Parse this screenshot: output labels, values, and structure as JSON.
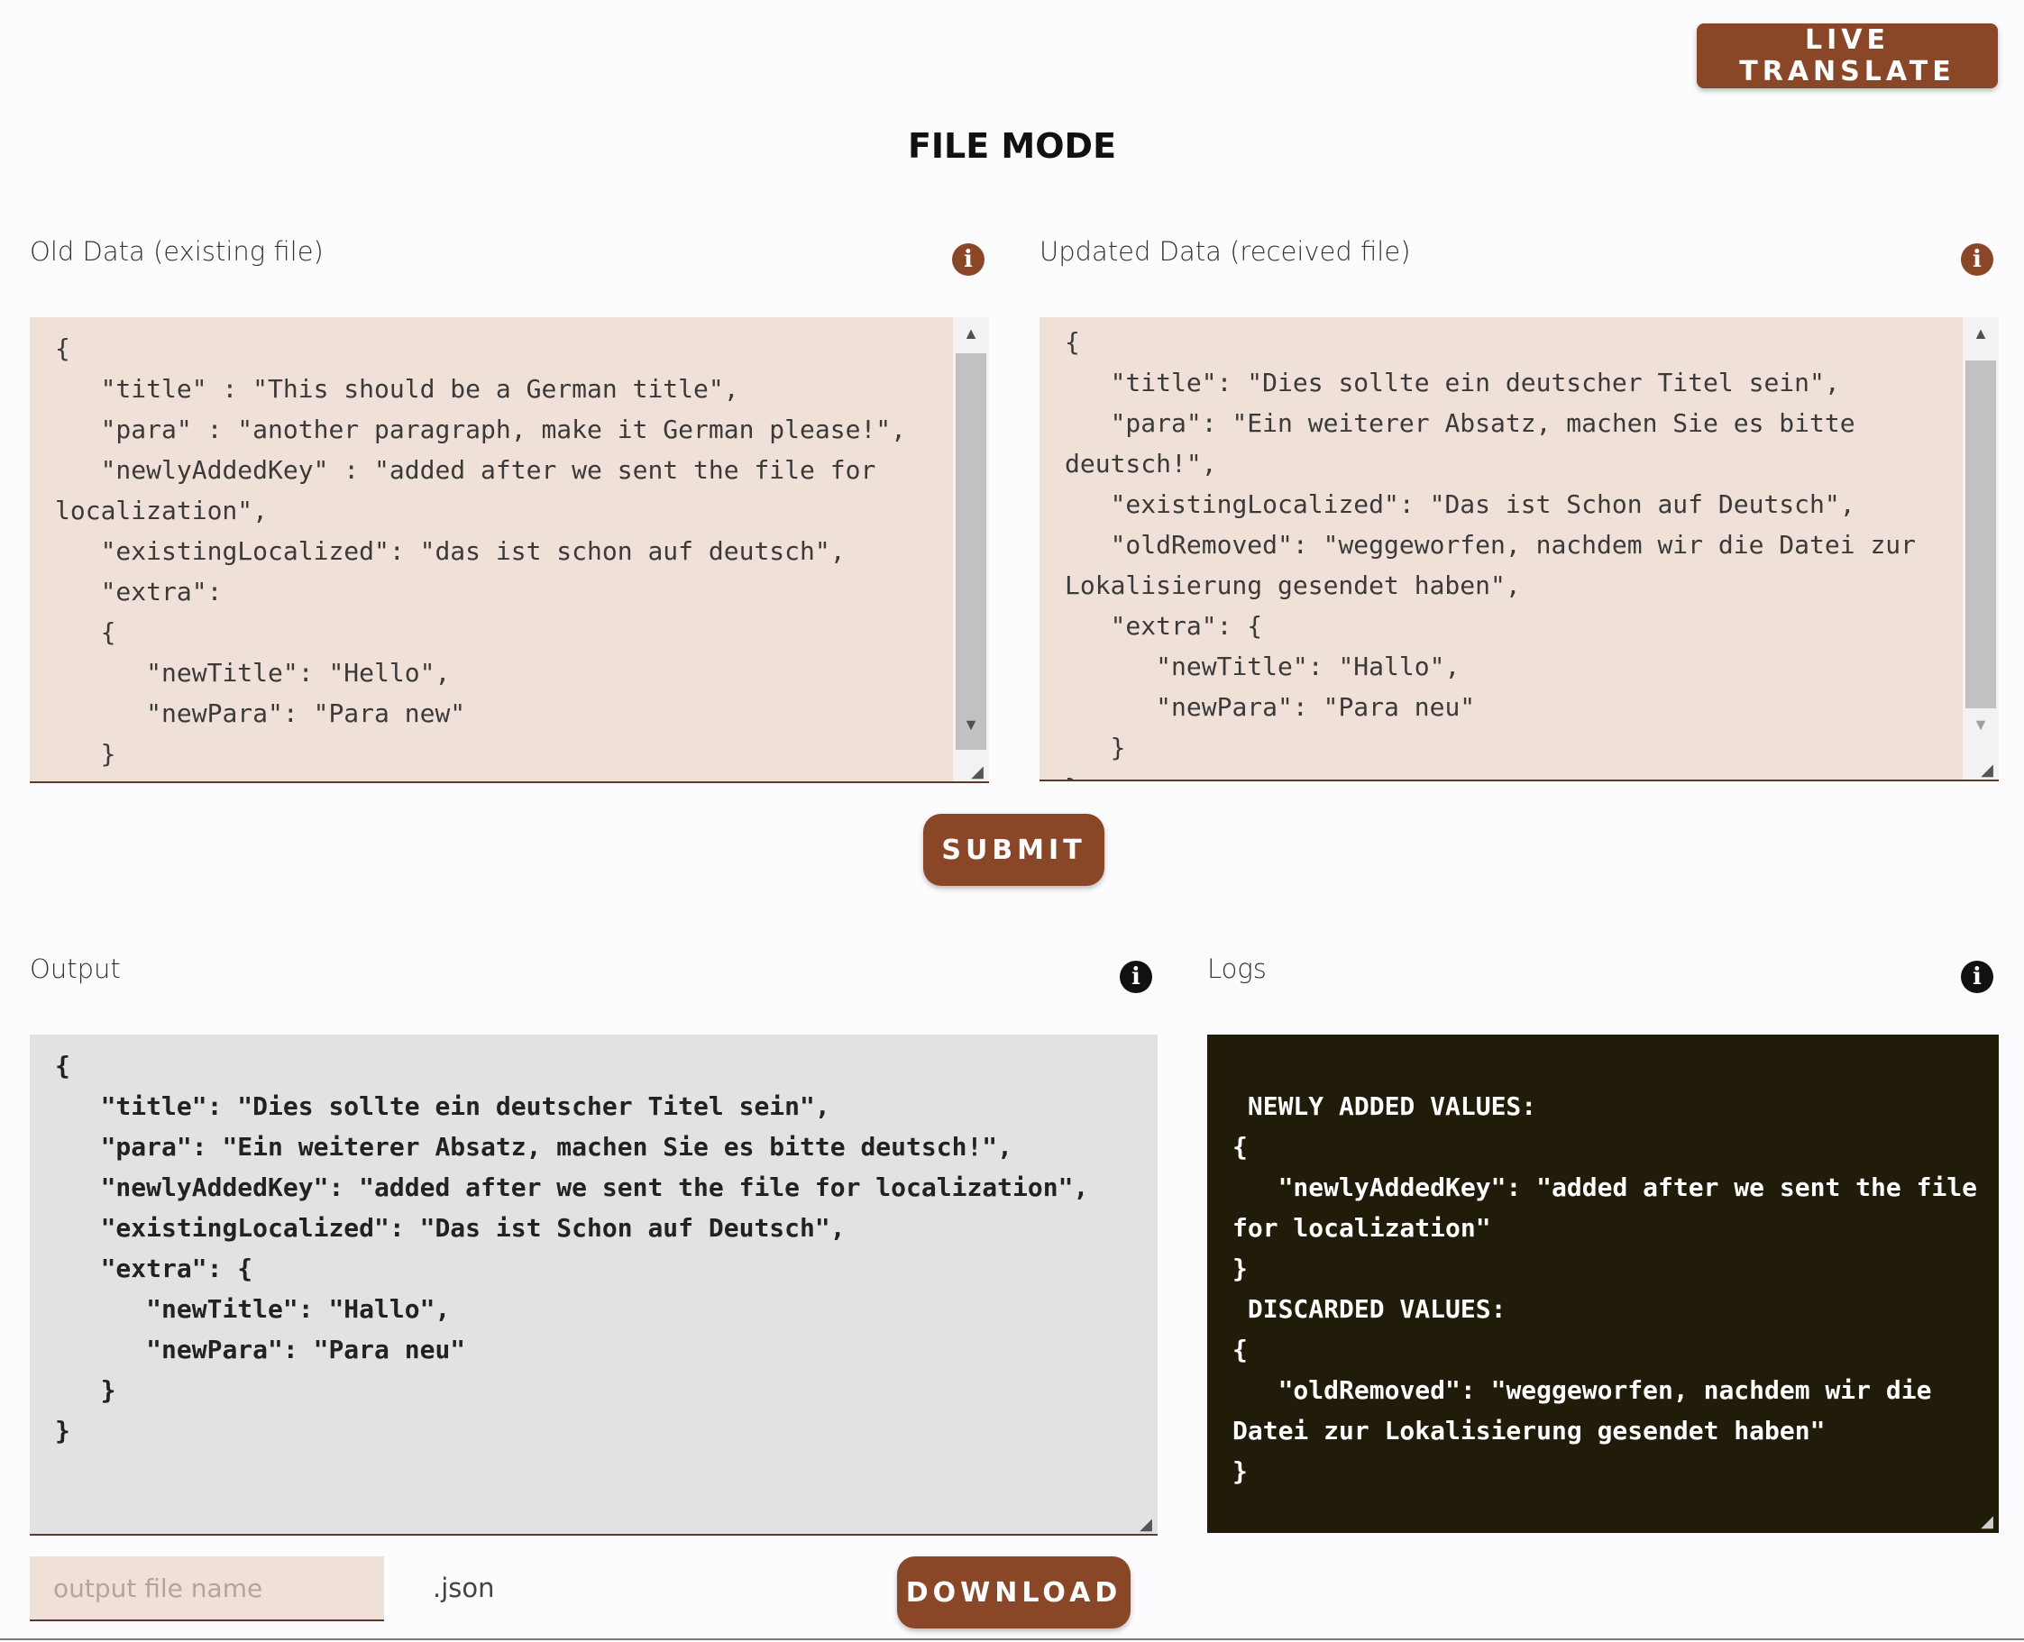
{
  "header": {
    "live_translate_label": "LIVE TRANSLATE",
    "page_title": "FILE MODE"
  },
  "old_data": {
    "label": "Old Data (existing file)",
    "content": "{\n   \"title\" : \"This should be a German title\",\n   \"para\" : \"another paragraph, make it German please!\",\n   \"newlyAddedKey\" : \"added after we sent the file for localization\",\n   \"existingLocalized\": \"das ist schon auf deutsch\",\n   \"extra\":\n   {\n      \"newTitle\": \"Hello\",\n      \"newPara\": \"Para new\"\n   }\n}"
  },
  "updated_data": {
    "label": "Updated Data (received file)",
    "content": "{\n   \"title\": \"Dies sollte ein deutscher Titel sein\",\n   \"para\": \"Ein weiterer Absatz, machen Sie es bitte deutsch!\",\n   \"existingLocalized\": \"Das ist Schon auf Deutsch\",\n   \"oldRemoved\": \"weggeworfen, nachdem wir die Datei zur Lokalisierung gesendet haben\",\n   \"extra\": {\n      \"newTitle\": \"Hallo\",\n      \"newPara\": \"Para neu\"\n   }\n}"
  },
  "submit_label": "SUBMIT",
  "output": {
    "label": "Output",
    "content": "{\n   \"title\": \"Dies sollte ein deutscher Titel sein\",\n   \"para\": \"Ein weiterer Absatz, machen Sie es bitte deutsch!\",\n   \"newlyAddedKey\": \"added after we sent the file for localization\",\n   \"existingLocalized\": \"Das ist Schon auf Deutsch\",\n   \"extra\": {\n      \"newTitle\": \"Hallo\",\n      \"newPara\": \"Para neu\"\n   }\n}"
  },
  "logs": {
    "label": "Logs",
    "content": " NEWLY ADDED VALUES:\n{\n   \"newlyAddedKey\": \"added after we sent the file for localization\"\n}\n DISCARDED VALUES:\n{\n   \"oldRemoved\": \"weggeworfen, nachdem wir die Datei zur Lokalisierung gesendet haben\"\n}"
  },
  "download": {
    "filename_placeholder": "output file name",
    "filename_value": "",
    "extension_label": ".json",
    "download_label": "DOWNLOAD"
  },
  "colors": {
    "accent": "#8a4728",
    "input_bg": "#f0e1d8",
    "output_bg": "#e4e1e4",
    "logs_bg": "#201c09"
  },
  "icons": [
    "info-icon",
    "scroll-up-arrow-icon",
    "scroll-down-arrow-icon",
    "resize-handle-icon"
  ]
}
